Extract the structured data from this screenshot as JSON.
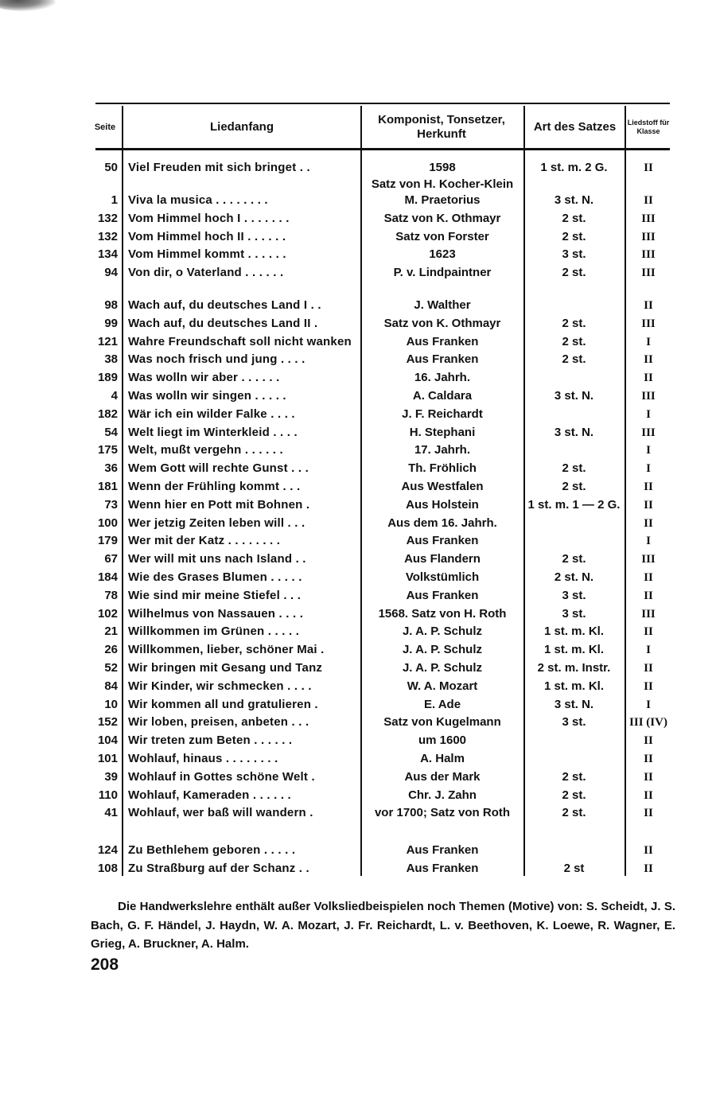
{
  "table": {
    "headers": {
      "seite": "Seite",
      "liedanfang": "Liedanfang",
      "komponist": "Komponist, Tonsetzer, Herkunft",
      "art": "Art des Satzes",
      "klasse": "Liedstoff für Klasse"
    },
    "groups": [
      [
        {
          "seite": "50",
          "lied": "Viel Freuden mit sich bringet  . .",
          "komp": "1598",
          "komp2": "Satz von H. Kocher-Klein",
          "art": "1 st. m. 2 G.",
          "klasse": "II"
        },
        {
          "seite": "1",
          "lied": "Viva la musica  . . . . . . . .",
          "komp": "M. Praetorius",
          "art": "3 st. N.",
          "klasse": "II"
        },
        {
          "seite": "132",
          "lied": "Vom Himmel hoch I . . . . . . .",
          "komp": "Satz von K. Othmayr",
          "art": "2 st.",
          "klasse": "III"
        },
        {
          "seite": "132",
          "lied": "Vom Himmel hoch II  . . . . . .",
          "komp": "Satz von Forster",
          "art": "2 st.",
          "klasse": "III"
        },
        {
          "seite": "134",
          "lied": "Vom Himmel kommt  . . . . . .",
          "komp": "1623",
          "art": "3 st.",
          "klasse": "III"
        },
        {
          "seite": "94",
          "lied": "Von dir, o Vaterland . . . . . .",
          "komp": "P. v. Lindpaintner",
          "art": "2 st.",
          "klasse": "III"
        }
      ],
      [
        {
          "seite": "98",
          "lied": "Wach auf, du deutsches Land I . .",
          "komp": "J. Walther",
          "art": "",
          "klasse": "II"
        },
        {
          "seite": "99",
          "lied": "Wach auf, du deutsches Land II  .",
          "komp": "Satz von K. Othmayr",
          "art": "2 st.",
          "klasse": "III"
        },
        {
          "seite": "121",
          "lied": "Wahre Freundschaft soll nicht wanken",
          "komp": "Aus Franken",
          "art": "2 st.",
          "klasse": "I"
        },
        {
          "seite": "38",
          "lied": "Was noch frisch und jung . . . .",
          "komp": "Aus Franken",
          "art": "2 st.",
          "klasse": "II"
        },
        {
          "seite": "189",
          "lied": "Was wolln wir aber  . . . . . .",
          "komp": "16. Jahrh.",
          "art": "",
          "klasse": "II"
        },
        {
          "seite": "4",
          "lied": "Was wolln wir singen  . . . . .",
          "komp": "A. Caldara",
          "art": "3 st. N.",
          "klasse": "III"
        },
        {
          "seite": "182",
          "lied": "Wär ich ein wilder Falke  . . . .",
          "komp": "J. F. Reichardt",
          "art": "",
          "klasse": "I"
        },
        {
          "seite": "54",
          "lied": "Welt liegt im Winterkleid . . . .",
          "komp": "H. Stephani",
          "art": "3 st. N.",
          "klasse": "III"
        },
        {
          "seite": "175",
          "lied": "Welt, mußt vergehn  . . . . . .",
          "komp": "17. Jahrh.",
          "art": "",
          "klasse": "I"
        },
        {
          "seite": "36",
          "lied": "Wem Gott will rechte Gunst . . .",
          "komp": "Th. Fröhlich",
          "art": "2 st.",
          "klasse": "I"
        },
        {
          "seite": "181",
          "lied": "Wenn der Frühling kommt  . . .",
          "komp": "Aus Westfalen",
          "art": "2 st.",
          "klasse": "II"
        },
        {
          "seite": "73",
          "lied": "Wenn hier en Pott mit Bohnen  .",
          "komp": "Aus Holstein",
          "art": "1 st. m. 1 — 2 G.",
          "klasse": "II"
        },
        {
          "seite": "100",
          "lied": "Wer jetzig Zeiten leben will  . . .",
          "komp": "Aus dem 16. Jahrh.",
          "art": "",
          "klasse": "II"
        },
        {
          "seite": "179",
          "lied": "Wer mit der Katz . . . . . . . .",
          "komp": "Aus Franken",
          "art": "",
          "klasse": "I"
        },
        {
          "seite": "67",
          "lied": "Wer will mit uns nach Island . .",
          "komp": "Aus Flandern",
          "art": "2 st.",
          "klasse": "III"
        },
        {
          "seite": "184",
          "lied": "Wie des Grases Blumen . . . . .",
          "komp": "Volkstümlich",
          "art": "2 st. N.",
          "klasse": "II"
        },
        {
          "seite": "78",
          "lied": "Wie sind mir meine Stiefel  . . .",
          "komp": "Aus Franken",
          "art": "3 st.",
          "klasse": "II"
        },
        {
          "seite": "102",
          "lied": "Wilhelmus von Nassauen  . . . .",
          "komp": "1568. Satz von H. Roth",
          "art": "3 st.",
          "klasse": "III"
        },
        {
          "seite": "21",
          "lied": "Willkommen im Grünen . . . . .",
          "komp": "J. A. P. Schulz",
          "art": "1 st. m. Kl.",
          "klasse": "II"
        },
        {
          "seite": "26",
          "lied": "Willkommen, lieber, schöner Mai  .",
          "komp": "J. A. P. Schulz",
          "art": "1 st. m. Kl.",
          "klasse": "I"
        },
        {
          "seite": "52",
          "lied": "Wir bringen mit Gesang und Tanz",
          "komp": "J. A. P. Schulz",
          "art": "2 st. m. Instr.",
          "klasse": "II"
        },
        {
          "seite": "84",
          "lied": "Wir Kinder, wir schmecken . . . .",
          "komp": "W. A. Mozart",
          "art": "1 st. m. Kl.",
          "klasse": "II"
        },
        {
          "seite": "10",
          "lied": "Wir kommen all und gratulieren .",
          "komp": "E. Ade",
          "art": "3 st. N.",
          "klasse": "I"
        },
        {
          "seite": "152",
          "lied": "Wir loben, preisen, anbeten  . . .",
          "komp": "Satz von Kugelmann",
          "art": "3 st.",
          "klasse": "III (IV)"
        },
        {
          "seite": "104",
          "lied": "Wir treten zum Beten . . . . . .",
          "komp": "um 1600",
          "art": "",
          "klasse": "II"
        },
        {
          "seite": "101",
          "lied": "Wohlauf, hinaus . . . . . . . .",
          "komp": "A. Halm",
          "art": "",
          "klasse": "II"
        },
        {
          "seite": "39",
          "lied": "Wohlauf in Gottes schöne Welt  .",
          "komp": "Aus der Mark",
          "art": "2 st.",
          "klasse": "II"
        },
        {
          "seite": "110",
          "lied": "Wohlauf, Kameraden  . . . . . .",
          "komp": "Chr. J. Zahn",
          "art": "2 st.",
          "klasse": "II"
        },
        {
          "seite": "41",
          "lied": "Wohlauf, wer baß will wandern  .",
          "komp": "vor 1700; Satz von Roth",
          "art": "2 st.",
          "klasse": "II"
        }
      ],
      [
        {
          "seite": "124",
          "lied": "Zu Bethlehem geboren  . . . . .",
          "komp": "Aus Franken",
          "art": "",
          "klasse": "II"
        },
        {
          "seite": "108",
          "lied": "Zu Straßburg auf der Schanz  . .",
          "komp": "Aus Franken",
          "art": "2 st",
          "klasse": "II"
        }
      ]
    ]
  },
  "footnote": {
    "line1": "Die Handwerkslehre enthält außer Volksliedbeispielen noch Themen (Motive) von:",
    "line2": "S. Scheidt, J. S. Bach, G. F. Händel, J. Haydn, W. A. Mozart, J. Fr. Reichardt, L. v. Beethoven, K. Loewe, R. Wagner, E. Grieg, A. Bruckner, A. Halm."
  },
  "page_number": "208"
}
